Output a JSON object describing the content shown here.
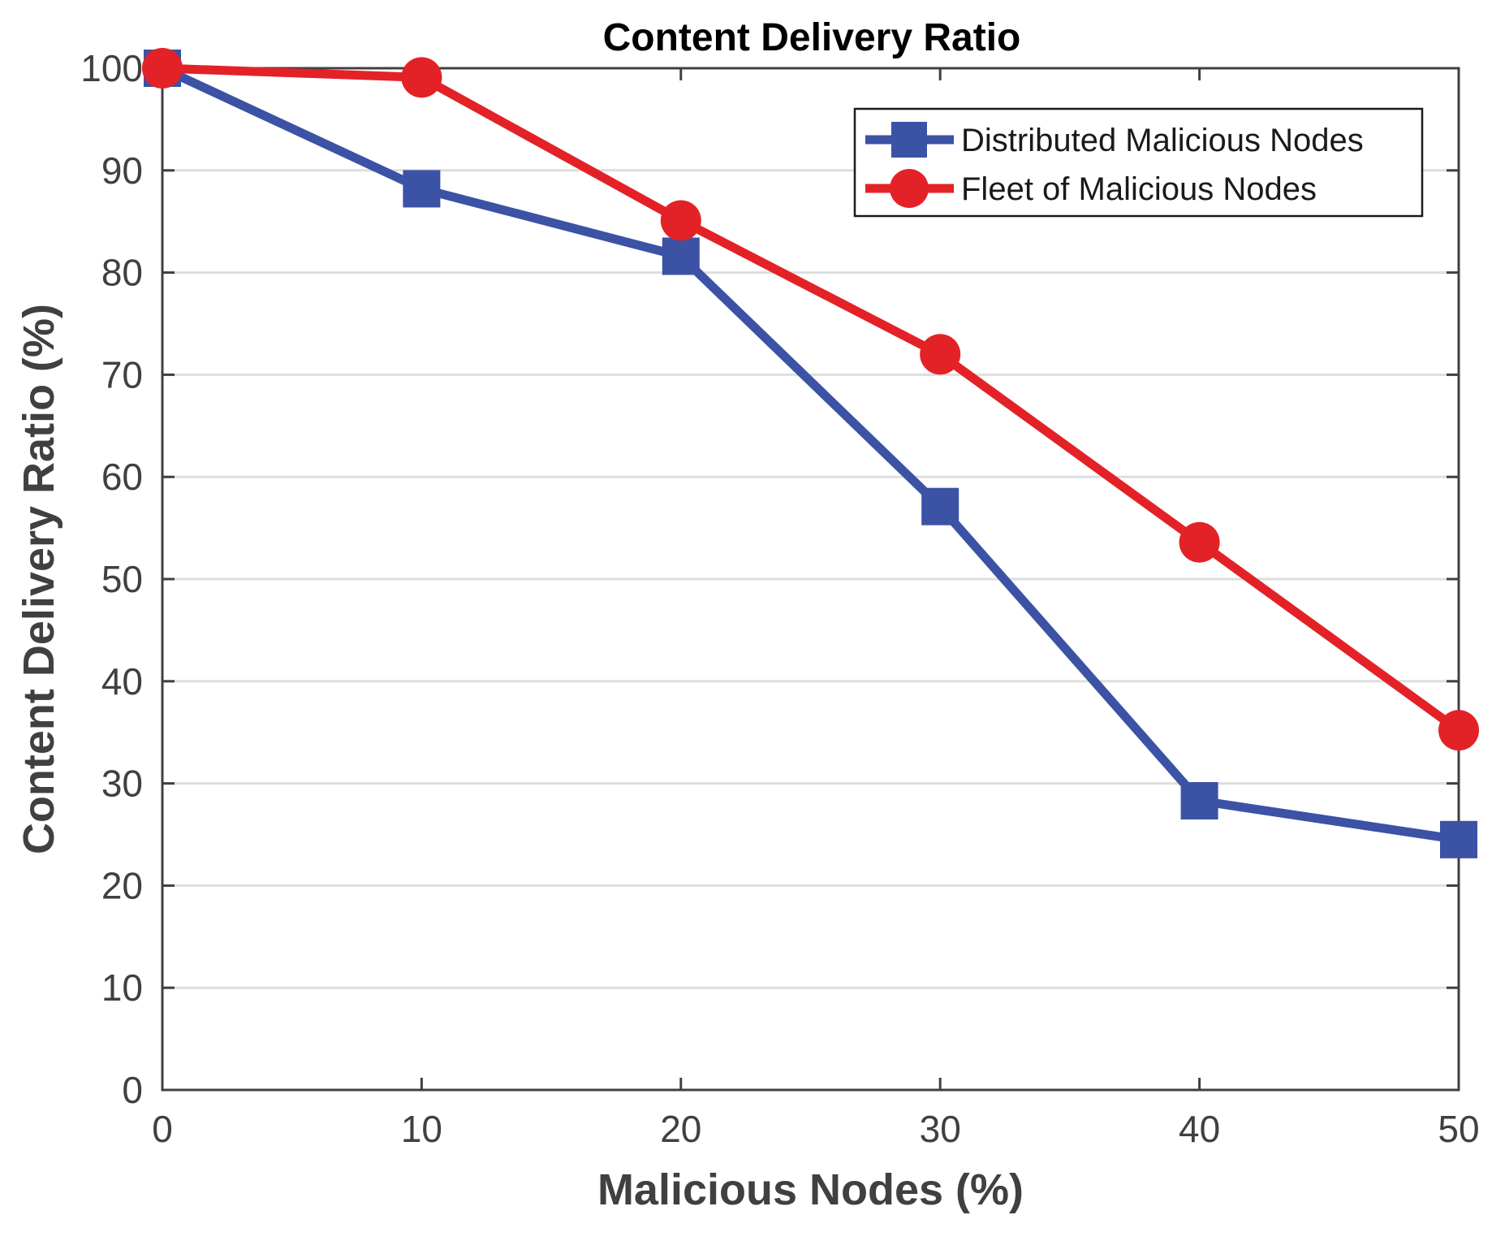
{
  "chart_data": {
    "type": "line",
    "title": "Content Delivery Ratio",
    "xlabel": "Malicious Nodes (%)",
    "ylabel": "Content Delivery Ratio (%)",
    "x": [
      0,
      10,
      20,
      30,
      40,
      50
    ],
    "xlim": [
      0,
      50
    ],
    "ylim": [
      0,
      100
    ],
    "xticks": [
      "0",
      "10",
      "20",
      "30",
      "40",
      "50"
    ],
    "yticks": [
      "0",
      "10",
      "20",
      "30",
      "40",
      "50",
      "60",
      "70",
      "80",
      "90",
      "100"
    ],
    "grid": "horizontal",
    "legend_position": "top-right",
    "series": [
      {
        "name": "Distributed Malicious Nodes",
        "values": [
          100,
          88.2,
          81.6,
          57.1,
          28.3,
          24.5
        ],
        "color": "#3b52a5",
        "marker": "square"
      },
      {
        "name": "Fleet of Malicious Nodes",
        "values": [
          100,
          99.1,
          85.1,
          72,
          53.6,
          35.2
        ],
        "color": "#e32227",
        "marker": "circle"
      }
    ]
  }
}
